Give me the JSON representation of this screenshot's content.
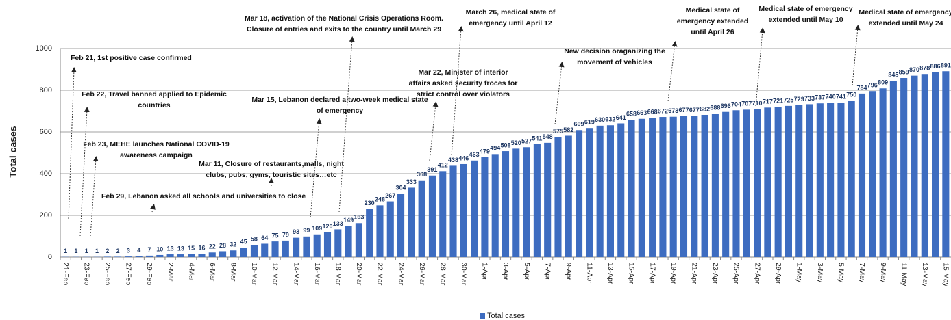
{
  "chart_data": {
    "type": "bar",
    "y_label": "Total cases",
    "categories": [
      "21-Feb",
      null,
      "23-Feb",
      null,
      "25-Feb",
      null,
      "27-Feb",
      null,
      "29-Feb",
      null,
      "2-Mar",
      null,
      "4-Mar",
      null,
      "6-Mar",
      null,
      "8-Mar",
      null,
      "10-Mar",
      null,
      "12-Mar",
      null,
      "14-Mar",
      null,
      "16-Mar",
      null,
      "18-Mar",
      null,
      "20-Mar",
      null,
      "22-Mar",
      null,
      "24-Mar",
      null,
      "26-Mar",
      null,
      "28-Mar",
      null,
      "30-Mar",
      null,
      "1-Apr",
      null,
      "3-Apr",
      null,
      "5-Apr",
      null,
      "7-Apr",
      null,
      "9-Apr",
      null,
      "11-Apr",
      null,
      "13-Apr",
      null,
      "15-Apr",
      null,
      "17-Apr",
      null,
      "19-Apr",
      null,
      "21-Apr",
      null,
      "23-Apr",
      null,
      "25-Apr",
      null,
      "27-Apr",
      null,
      "29-Apr",
      null,
      "1-May",
      null,
      "3-May",
      null,
      "5-May",
      null,
      "7-May",
      null,
      "9-May",
      null,
      "11-May",
      null,
      "13-May",
      null,
      "15-May"
    ],
    "series": [
      {
        "name": "Total cases",
        "color": "#3d6cc0",
        "values": [
          1,
          1,
          1,
          1,
          2,
          2,
          3,
          4,
          7,
          10,
          13,
          13,
          15,
          16,
          22,
          28,
          32,
          45,
          58,
          64,
          75,
          79,
          93,
          99,
          109,
          120,
          133,
          149,
          163,
          230,
          248,
          267,
          304,
          333,
          368,
          391,
          412,
          438,
          446,
          463,
          479,
          494,
          508,
          520,
          527,
          541,
          548,
          575,
          582,
          609,
          619,
          630,
          632,
          641,
          658,
          663,
          668,
          672,
          673,
          677,
          677,
          682,
          688,
          696,
          704,
          707,
          710,
          717,
          721,
          725,
          729,
          733,
          737,
          740,
          741,
          750,
          784,
          796,
          809,
          845,
          859,
          870,
          878,
          886,
          891
        ]
      }
    ],
    "ylim": [
      0,
      1000
    ],
    "yticks": [
      0,
      200,
      400,
      600,
      800,
      1000
    ],
    "grid": true,
    "legend": "bottom",
    "annotations": [
      [
        "Feb 21, 1st positive case confirmed"
      ],
      [
        "Feb 22, Travel banned applied to Epidemic",
        "countries"
      ],
      [
        "Feb 23, MEHE launches National COVID-19",
        "awareness campaign"
      ],
      [
        "Mar 11, Closure of restaurants,malls, night",
        "clubs, pubs, gyms, touristic sites…etc"
      ],
      [
        "Feb 29, Lebanon asked all schools and universities to close"
      ],
      [
        "Mar 15, Lebanon declared a two-week medical state",
        "of emergency"
      ],
      [
        "Mar 18, activation of the National Crisis Operations Room.",
        "Closure of entries and exits to the country until March 29"
      ],
      [
        "March 26, medical state of",
        "emergency until April 12"
      ],
      [
        "Mar 22, Minister of interior",
        "affairs asked security froces for",
        "strict control over violators"
      ],
      [
        "New decision oraganizing the",
        "movement of vehicles"
      ],
      [
        "Medical state of",
        "emergency extended",
        "until April 26"
      ],
      [
        "Medical state of emergency",
        "extended until May 10"
      ],
      [
        "Medical state of emergency",
        "extended until May 24"
      ]
    ]
  }
}
